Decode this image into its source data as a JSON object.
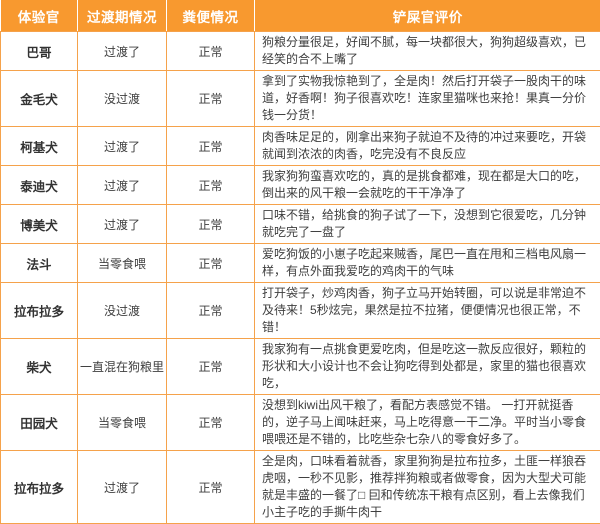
{
  "colors": {
    "header_bg": "#F8992F",
    "border": "#F5A24B",
    "header_text": "#FFFFFF",
    "body_text": "#3E3E3E"
  },
  "table": {
    "headers": [
      "体验官",
      "过渡期情况",
      "粪便情况",
      "铲屎官评价"
    ],
    "rows": [
      {
        "dog": "巴哥",
        "transition": "过渡了",
        "stool": "正常",
        "review": "狗粮分量很足，好闻不腻，每一块都很大，狗狗超级喜欢，已经笑的合不上嘴了"
      },
      {
        "dog": "金毛犬",
        "transition": "没过渡",
        "stool": "正常",
        "review": "拿到了实物我惊艳到了，全是肉！然后打开袋子一股肉干的味道，好香啊！狗子很喜欢吃！连家里猫咪也来抢！果真一分价钱一分货！"
      },
      {
        "dog": "柯基犬",
        "transition": "过渡了",
        "stool": "正常",
        "review": "肉香味足足的，刚拿出来狗子就迫不及待的冲过来要吃，开袋就闻到浓浓的肉香，吃完没有不良反应"
      },
      {
        "dog": "泰迪犬",
        "transition": "过渡了",
        "stool": "正常",
        "review": "我家狗狗蛮喜欢吃的，真的是挑食都难，现在都是大口的吃，倒出来的风干粮一会就吃的干干净净了"
      },
      {
        "dog": "博美犬",
        "transition": "过渡了",
        "stool": "正常",
        "review": "口味不错，给挑食的狗子试了一下，没想到它很爱吃，几分钟就吃完了一盘了"
      },
      {
        "dog": "法斗",
        "transition": "当零食喂",
        "stool": "正常",
        "review": "爱吃狗饭的小崽子吃起来贼香，尾巴一直在甩和三档电风扇一样，有点外面我爱吃的鸡肉干的气味"
      },
      {
        "dog": "拉布拉多",
        "transition": "没过渡",
        "stool": "正常",
        "review": "打开袋子，炒鸡肉香，狗子立马开始转圈，可以说是非常迫不及待来！5秒炫完，果然是拉不拉猪，便便情况也很正常，不错！"
      },
      {
        "dog": "柴犬",
        "transition": "一直混在狗粮里",
        "stool": "正常",
        "review": "我家狗有一点挑食更爱吃肉，但是吃这一款反应很好，颗粒的形状和大小设计也不会让狗吃得到处都是，家里的猫也很喜欢吃，"
      },
      {
        "dog": "田园犬",
        "transition": "当零食喂",
        "stool": "正常",
        "review": "没想到kiwi出风干粮了，看配方表感觉不错。 一打开就挺香的，逆子马上闻味赶来，马上吃得意一干二净。平时当小零食喂喂还是不错的，比吃些杂七杂八的零食好多了。"
      },
      {
        "dog": "拉布拉多",
        "transition": "过渡了",
        "stool": "正常",
        "review": "全是肉，口味看着就香，家里狗狗是拉布拉多，土匪一样狼吞虎咽，一秒不见影，推荐拌狗粮或者做零食，因为大型犬可能就是丰盛的一餐了□ 囙和传统冻干粮有点区别，看上去像我们小主子吃的手撕牛肉干"
      }
    ]
  }
}
